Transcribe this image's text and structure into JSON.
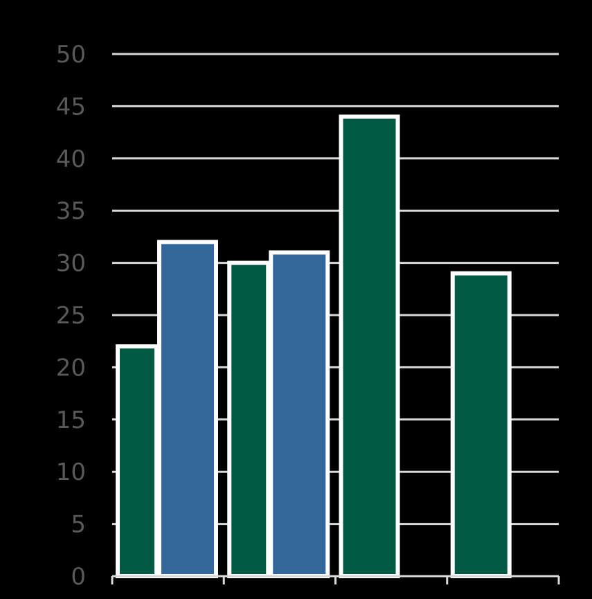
{
  "chart_data": {
    "type": "bar",
    "categories": [
      "",
      "",
      "",
      ""
    ],
    "series": [
      {
        "values": [
          22,
          30,
          44,
          29
        ]
      },
      {
        "values": [
          32,
          31,
          null,
          null
        ]
      }
    ],
    "ylim": [
      0,
      50
    ],
    "yticks": [
      "0",
      "5",
      "10",
      "15",
      "20",
      "25",
      "30",
      "35",
      "40",
      "45",
      "50"
    ],
    "grid": true,
    "legend": "none"
  },
  "colors": {
    "background": "#000000",
    "series_1": "#005a43",
    "series_2": "#33669a",
    "bar_outline": "#ffffff",
    "gridline": "#d9d9d9",
    "tick_label": "#595959"
  }
}
